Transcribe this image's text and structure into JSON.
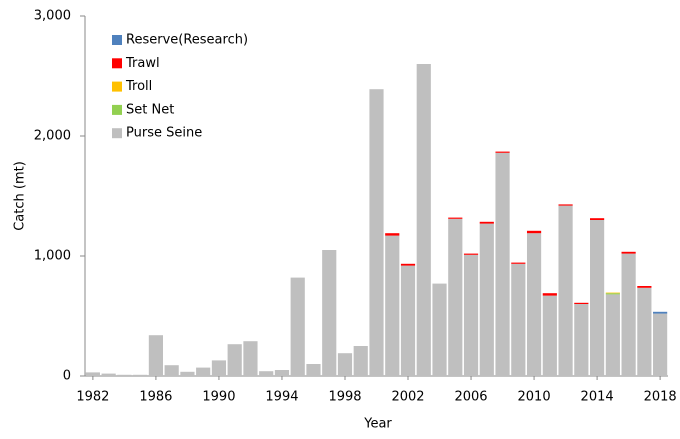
{
  "chart_data": {
    "type": "stacked-bar",
    "x": [
      1982,
      1983,
      1984,
      1985,
      1986,
      1987,
      1988,
      1989,
      1990,
      1991,
      1992,
      1993,
      1994,
      1995,
      1996,
      1997,
      1998,
      1999,
      2000,
      2001,
      2002,
      2003,
      2004,
      2005,
      2006,
      2007,
      2008,
      2009,
      2010,
      2011,
      2012,
      2013,
      2014,
      2015,
      2016,
      2017,
      2018
    ],
    "xlim": [
      1981.5,
      2018.5
    ],
    "xticks": [
      1982,
      1986,
      1990,
      1994,
      1998,
      2002,
      2006,
      2010,
      2014,
      2018
    ],
    "ylim": [
      0,
      3000
    ],
    "yticks": [
      0,
      {
        "value": 1000,
        "label": "1,000"
      },
      {
        "value": 2000,
        "label": "2,000"
      },
      {
        "value": 3000,
        "label": "3,000"
      }
    ],
    "xlabel": "Year",
    "ylabel": "Catch (mt)",
    "legend": "upper-left",
    "grid": false,
    "series": [
      {
        "name": "Reserve(Research)",
        "color": "#4f81bd",
        "values": [
          0,
          0,
          0,
          0,
          0,
          0,
          0,
          0,
          0,
          0,
          0,
          0,
          0,
          0,
          0,
          0,
          0,
          0,
          0,
          0,
          0,
          0,
          0,
          0,
          0,
          0,
          0,
          0,
          0,
          0,
          0,
          0,
          0,
          0,
          0,
          0,
          15
        ]
      },
      {
        "name": "Trawl",
        "color": "#ff0000",
        "values": [
          0,
          0,
          0,
          0,
          0,
          0,
          0,
          0,
          0,
          0,
          0,
          0,
          0,
          0,
          0,
          0,
          0,
          0,
          0,
          20,
          15,
          0,
          0,
          10,
          10,
          15,
          10,
          10,
          20,
          20,
          10,
          10,
          15,
          0,
          15,
          15,
          0
        ]
      },
      {
        "name": "Troll",
        "color": "#ffc000",
        "values": [
          0,
          0,
          0,
          0,
          0,
          0,
          0,
          0,
          0,
          0,
          0,
          0,
          0,
          0,
          0,
          0,
          0,
          0,
          0,
          0,
          0,
          0,
          0,
          0,
          0,
          0,
          0,
          0,
          0,
          0,
          0,
          0,
          0,
          5,
          0,
          0,
          0
        ]
      },
      {
        "name": "Set Net",
        "color": "#92d050",
        "values": [
          0,
          0,
          0,
          0,
          0,
          0,
          0,
          0,
          0,
          0,
          0,
          0,
          0,
          0,
          0,
          0,
          0,
          0,
          0,
          0,
          0,
          0,
          0,
          0,
          0,
          0,
          0,
          0,
          0,
          0,
          0,
          0,
          0,
          10,
          0,
          0,
          0
        ]
      },
      {
        "name": "Purse Seine",
        "color": "#bfbfbf",
        "values": [
          30,
          20,
          10,
          10,
          340,
          90,
          35,
          70,
          130,
          265,
          290,
          40,
          50,
          820,
          100,
          1050,
          190,
          250,
          2390,
          1170,
          920,
          2600,
          770,
          1310,
          1010,
          1270,
          1860,
          935,
          1190,
          670,
          1420,
          600,
          1300,
          680,
          1020,
          735,
          520
        ]
      }
    ]
  }
}
